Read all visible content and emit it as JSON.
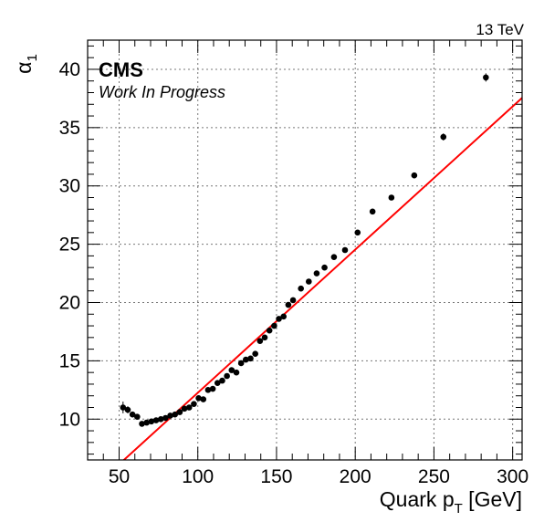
{
  "chart_data": {
    "type": "scatter",
    "energy_label": "13 TeV",
    "experiment_label": "CMS",
    "status_label": "Work In Progress",
    "ylabel_base": "α",
    "ylabel_sub": "1",
    "xlabel_pre": "Quark p",
    "xlabel_sub": "T",
    "xlabel_post": " [GeV]",
    "xlim": [
      30,
      306
    ],
    "ylim": [
      6.5,
      42.5
    ],
    "grid": true,
    "x_ticks": [
      50,
      100,
      150,
      200,
      250,
      300
    ],
    "y_ticks": [
      10,
      15,
      20,
      25,
      30,
      35,
      40
    ],
    "x_tick_labels": [
      "50",
      "100",
      "150",
      "200",
      "250",
      "300"
    ],
    "y_tick_labels": [
      "10",
      "15",
      "20",
      "25",
      "30",
      "35",
      "40"
    ],
    "series": [
      {
        "kind": "points",
        "color": "#000000",
        "x": [
          52.5,
          55.5,
          58.5,
          61.5,
          64.5,
          67.5,
          70.5,
          73.5,
          76.5,
          79.5,
          82.5,
          85.5,
          88.5,
          91.5,
          94.5,
          97.5,
          100.5,
          103.5,
          106.5,
          109.5,
          112.5,
          115.5,
          118.5,
          121.5,
          124.5,
          127.5,
          130.5,
          133.5,
          136.5,
          139.5,
          142.5,
          145.5,
          148.5,
          151.5,
          154.5,
          157.5,
          160.5,
          165.5,
          170.5,
          175.5,
          180.5,
          186.5,
          193.5,
          201.5,
          211,
          223,
          237.5,
          256,
          283
        ],
        "y": [
          11.0,
          10.8,
          10.4,
          10.2,
          9.6,
          9.7,
          9.8,
          9.9,
          10.0,
          10.1,
          10.3,
          10.4,
          10.6,
          10.9,
          11.0,
          11.3,
          11.8,
          11.7,
          12.5,
          12.6,
          13.1,
          13.3,
          13.7,
          14.2,
          14.0,
          14.8,
          15.1,
          15.2,
          15.6,
          16.7,
          17.0,
          17.6,
          18.0,
          18.6,
          18.8,
          19.8,
          20.2,
          21.2,
          21.8,
          22.5,
          23.0,
          23.9,
          24.5,
          26.0,
          27.8,
          29.0,
          30.9,
          34.2,
          39.3
        ],
        "yerr": [
          0.5,
          0.3,
          0.25,
          0.2,
          0.2,
          0.15,
          0.15,
          0.15,
          0.15,
          0.15,
          0.15,
          0.15,
          0.15,
          0.15,
          0.15,
          0.15,
          0.15,
          0.15,
          0.15,
          0.15,
          0.15,
          0.15,
          0.15,
          0.15,
          0.15,
          0.15,
          0.15,
          0.15,
          0.15,
          0.15,
          0.15,
          0.15,
          0.15,
          0.15,
          0.15,
          0.15,
          0.15,
          0.2,
          0.2,
          0.2,
          0.2,
          0.2,
          0.2,
          0.2,
          0.2,
          0.2,
          0.25,
          0.3,
          0.35
        ]
      },
      {
        "kind": "line",
        "color": "#ff0000",
        "x": [
          30,
          306
        ],
        "y": [
          3.67,
          37.55
        ]
      }
    ]
  }
}
